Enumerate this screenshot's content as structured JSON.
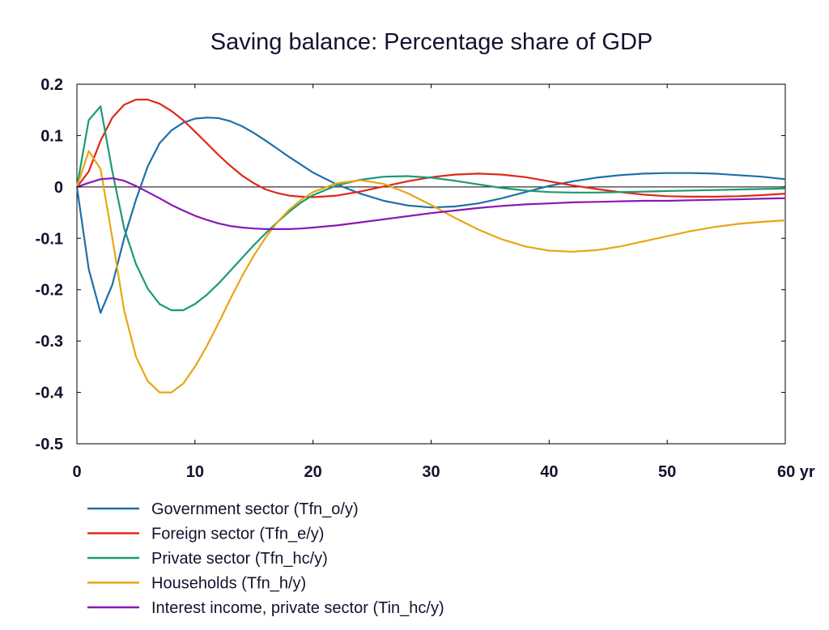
{
  "chart_data": {
    "type": "line",
    "title": "Saving balance: Percentage share of GDP",
    "xlabel": "",
    "ylabel": "",
    "x_unit": "yr",
    "xlim": [
      0,
      60
    ],
    "ylim": [
      -0.5,
      0.2
    ],
    "x_ticks": [
      0,
      10,
      20,
      30,
      40,
      50,
      60
    ],
    "x_tick_labels": [
      "0",
      "10",
      "20",
      "30",
      "40",
      "50",
      "60 yr"
    ],
    "y_ticks": [
      0.2,
      0.1,
      0,
      -0.1,
      -0.2,
      -0.3,
      -0.4,
      -0.5
    ],
    "y_tick_labels": [
      "0.2",
      "0.1",
      "0",
      "-0.1",
      "-0.2",
      "-0.3",
      "-0.4",
      "-0.5"
    ],
    "grid": false,
    "zero_line": true,
    "legend_position": "bottom",
    "series": [
      {
        "name": "Government sector (Tfn_o/y)",
        "color": "#1f6fa8",
        "points": [
          [
            0,
            0
          ],
          [
            1,
            -0.16
          ],
          [
            2,
            -0.245
          ],
          [
            3,
            -0.19
          ],
          [
            4,
            -0.1
          ],
          [
            5,
            -0.025
          ],
          [
            6,
            0.04
          ],
          [
            7,
            0.085
          ],
          [
            8,
            0.11
          ],
          [
            9,
            0.125
          ],
          [
            10,
            0.133
          ],
          [
            11,
            0.135
          ],
          [
            12,
            0.134
          ],
          [
            13,
            0.128
          ],
          [
            14,
            0.118
          ],
          [
            15,
            0.105
          ],
          [
            16,
            0.09
          ],
          [
            17,
            0.074
          ],
          [
            18,
            0.058
          ],
          [
            19,
            0.043
          ],
          [
            20,
            0.028
          ],
          [
            22,
            0.005
          ],
          [
            24,
            -0.013
          ],
          [
            26,
            -0.027
          ],
          [
            28,
            -0.036
          ],
          [
            30,
            -0.04
          ],
          [
            32,
            -0.038
          ],
          [
            34,
            -0.032
          ],
          [
            36,
            -0.022
          ],
          [
            38,
            -0.01
          ],
          [
            40,
            0.002
          ],
          [
            42,
            0.011
          ],
          [
            44,
            0.018
          ],
          [
            46,
            0.023
          ],
          [
            48,
            0.026
          ],
          [
            50,
            0.027
          ],
          [
            52,
            0.027
          ],
          [
            54,
            0.026
          ],
          [
            56,
            0.023
          ],
          [
            58,
            0.02
          ],
          [
            60,
            0.015
          ]
        ]
      },
      {
        "name": "Foreign sector (Tfn_e/y)",
        "color": "#e0281a",
        "points": [
          [
            0,
            0
          ],
          [
            1,
            0.03
          ],
          [
            2,
            0.09
          ],
          [
            3,
            0.135
          ],
          [
            4,
            0.16
          ],
          [
            5,
            0.17
          ],
          [
            6,
            0.17
          ],
          [
            7,
            0.162
          ],
          [
            8,
            0.148
          ],
          [
            9,
            0.13
          ],
          [
            10,
            0.108
          ],
          [
            11,
            0.085
          ],
          [
            12,
            0.062
          ],
          [
            13,
            0.041
          ],
          [
            14,
            0.022
          ],
          [
            15,
            0.007
          ],
          [
            16,
            -0.005
          ],
          [
            17,
            -0.012
          ],
          [
            18,
            -0.017
          ],
          [
            19,
            -0.019
          ],
          [
            20,
            -0.02
          ],
          [
            22,
            -0.017
          ],
          [
            24,
            -0.009
          ],
          [
            26,
            0.001
          ],
          [
            28,
            0.011
          ],
          [
            30,
            0.019
          ],
          [
            32,
            0.024
          ],
          [
            34,
            0.026
          ],
          [
            36,
            0.024
          ],
          [
            38,
            0.019
          ],
          [
            40,
            0.011
          ],
          [
            42,
            0.003
          ],
          [
            44,
            -0.004
          ],
          [
            46,
            -0.01
          ],
          [
            48,
            -0.015
          ],
          [
            50,
            -0.018
          ],
          [
            52,
            -0.019
          ],
          [
            54,
            -0.019
          ],
          [
            56,
            -0.018
          ],
          [
            58,
            -0.016
          ],
          [
            60,
            -0.013
          ]
        ]
      },
      {
        "name": "Private sector (Tfn_hc/y)",
        "color": "#1a9a73",
        "points": [
          [
            0,
            0
          ],
          [
            1,
            0.13
          ],
          [
            2,
            0.157
          ],
          [
            3,
            0.03
          ],
          [
            4,
            -0.08
          ],
          [
            5,
            -0.15
          ],
          [
            6,
            -0.198
          ],
          [
            7,
            -0.228
          ],
          [
            8,
            -0.24
          ],
          [
            9,
            -0.24
          ],
          [
            10,
            -0.228
          ],
          [
            11,
            -0.21
          ],
          [
            12,
            -0.188
          ],
          [
            13,
            -0.163
          ],
          [
            14,
            -0.138
          ],
          [
            15,
            -0.113
          ],
          [
            16,
            -0.09
          ],
          [
            17,
            -0.068
          ],
          [
            18,
            -0.048
          ],
          [
            19,
            -0.03
          ],
          [
            20,
            -0.016
          ],
          [
            22,
            0.003
          ],
          [
            24,
            0.014
          ],
          [
            26,
            0.02
          ],
          [
            28,
            0.021
          ],
          [
            30,
            0.018
          ],
          [
            32,
            0.012
          ],
          [
            34,
            0.005
          ],
          [
            36,
            -0.002
          ],
          [
            38,
            -0.007
          ],
          [
            40,
            -0.01
          ],
          [
            42,
            -0.011
          ],
          [
            44,
            -0.011
          ],
          [
            46,
            -0.01
          ],
          [
            48,
            -0.009
          ],
          [
            50,
            -0.008
          ],
          [
            52,
            -0.007
          ],
          [
            54,
            -0.006
          ],
          [
            56,
            -0.005
          ],
          [
            58,
            -0.004
          ],
          [
            60,
            -0.003
          ]
        ]
      },
      {
        "name": "Households (Tfn_h/y)",
        "color": "#e8a614",
        "points": [
          [
            0,
            0
          ],
          [
            1,
            0.07
          ],
          [
            2,
            0.035
          ],
          [
            3,
            -0.1
          ],
          [
            4,
            -0.24
          ],
          [
            5,
            -0.33
          ],
          [
            6,
            -0.378
          ],
          [
            7,
            -0.4
          ],
          [
            8,
            -0.4
          ],
          [
            9,
            -0.383
          ],
          [
            10,
            -0.35
          ],
          [
            11,
            -0.31
          ],
          [
            12,
            -0.265
          ],
          [
            13,
            -0.218
          ],
          [
            14,
            -0.173
          ],
          [
            15,
            -0.133
          ],
          [
            16,
            -0.098
          ],
          [
            17,
            -0.068
          ],
          [
            18,
            -0.044
          ],
          [
            19,
            -0.025
          ],
          [
            20,
            -0.01
          ],
          [
            22,
            0.007
          ],
          [
            24,
            0.013
          ],
          [
            26,
            0.006
          ],
          [
            28,
            -0.012
          ],
          [
            30,
            -0.035
          ],
          [
            32,
            -0.06
          ],
          [
            34,
            -0.083
          ],
          [
            36,
            -0.102
          ],
          [
            38,
            -0.116
          ],
          [
            40,
            -0.124
          ],
          [
            42,
            -0.126
          ],
          [
            44,
            -0.123
          ],
          [
            46,
            -0.116
          ],
          [
            48,
            -0.106
          ],
          [
            50,
            -0.096
          ],
          [
            52,
            -0.086
          ],
          [
            54,
            -0.078
          ],
          [
            56,
            -0.072
          ],
          [
            58,
            -0.068
          ],
          [
            60,
            -0.065
          ]
        ]
      },
      {
        "name": "Interest income, private sector (Tin_hc/y)",
        "color": "#8a17b5",
        "points": [
          [
            0,
            0
          ],
          [
            1,
            0.008
          ],
          [
            2,
            0.015
          ],
          [
            3,
            0.017
          ],
          [
            4,
            0.012
          ],
          [
            5,
            0.002
          ],
          [
            6,
            -0.01
          ],
          [
            7,
            -0.022
          ],
          [
            8,
            -0.035
          ],
          [
            9,
            -0.046
          ],
          [
            10,
            -0.056
          ],
          [
            11,
            -0.064
          ],
          [
            12,
            -0.071
          ],
          [
            13,
            -0.076
          ],
          [
            14,
            -0.079
          ],
          [
            15,
            -0.081
          ],
          [
            16,
            -0.082
          ],
          [
            17,
            -0.082
          ],
          [
            18,
            -0.082
          ],
          [
            19,
            -0.081
          ],
          [
            20,
            -0.079
          ],
          [
            22,
            -0.075
          ],
          [
            24,
            -0.069
          ],
          [
            26,
            -0.063
          ],
          [
            28,
            -0.057
          ],
          [
            30,
            -0.051
          ],
          [
            32,
            -0.046
          ],
          [
            34,
            -0.041
          ],
          [
            36,
            -0.037
          ],
          [
            38,
            -0.034
          ],
          [
            40,
            -0.032
          ],
          [
            42,
            -0.03
          ],
          [
            44,
            -0.029
          ],
          [
            46,
            -0.028
          ],
          [
            48,
            -0.027
          ],
          [
            50,
            -0.027
          ],
          [
            52,
            -0.026
          ],
          [
            54,
            -0.025
          ],
          [
            56,
            -0.024
          ],
          [
            58,
            -0.023
          ],
          [
            60,
            -0.022
          ]
        ]
      }
    ]
  }
}
